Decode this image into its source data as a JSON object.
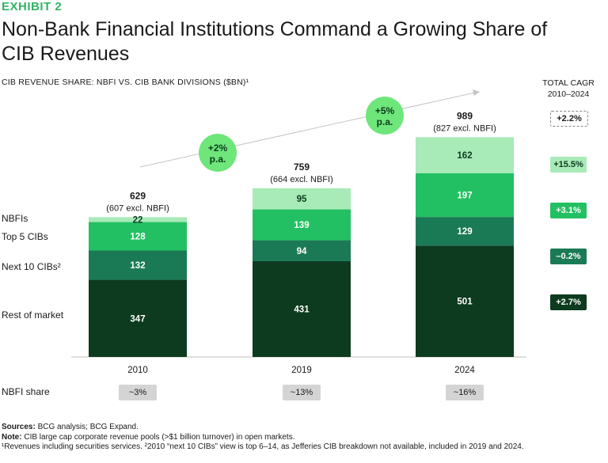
{
  "exhibit": "EXHIBIT 2",
  "title": "Non-Bank Financial Institutions Command a Growing Share of CIB Revenues",
  "subtitle": "CIB REVENUE SHARE: NBFI VS. CIB BANK DIVISIONS ($BN)¹",
  "cagr_header": {
    "line1": "TOTAL CAGR",
    "line2": "2010–2024"
  },
  "row_labels": {
    "nbfis": "NBFIs",
    "top5": "Top 5 CIBs",
    "next10": "Next 10 CIBs²",
    "rest": "Rest of market"
  },
  "nbfi_share_label": "NBFI share",
  "cagr_badges": [
    "+2.2%",
    "+15.5%",
    "+3.1%",
    "–0.2%",
    "+2.7%"
  ],
  "growth_bubbles": [
    {
      "line1": "+2%",
      "line2": "p.a."
    },
    {
      "line1": "+5%",
      "line2": "p.a."
    }
  ],
  "chart_data": {
    "type": "bar",
    "stacked": true,
    "categories": [
      "2010",
      "2019",
      "2024"
    ],
    "series": [
      {
        "name": "Rest of market",
        "values": [
          347,
          431,
          501
        ]
      },
      {
        "name": "Next 10 CIBs²",
        "values": [
          132,
          94,
          129
        ]
      },
      {
        "name": "Top 5 CIBs",
        "values": [
          128,
          139,
          197
        ]
      },
      {
        "name": "NBFIs",
        "values": [
          22,
          95,
          162
        ]
      }
    ],
    "totals": [
      "629",
      "759",
      "989"
    ],
    "totals_excl": [
      "(607 excl. NBFI)",
      "(664 excl. NBFI)",
      "(827 excl. NBFI)"
    ],
    "nbfi_share": [
      "~3%",
      "~13%",
      "~16%"
    ],
    "colors": [
      "#0d3b1f",
      "#1b7a56",
      "#23c063",
      "#a8eab8"
    ],
    "ylim": [
      0,
      1000
    ],
    "grid": false
  },
  "footnotes": {
    "sources_label": "Sources:",
    "sources": " BCG analysis; BCG Expand.",
    "note_label": "Note:",
    "note": " CIB large cap corporate revenue pools (>$1 billion turnover) in open markets.",
    "footnote": "¹Revenues including securities services. ²2010 “next 10 CIBs” view is top 6–14, as Jefferies CIB breakdown not available, included in 2019 and 2024."
  }
}
